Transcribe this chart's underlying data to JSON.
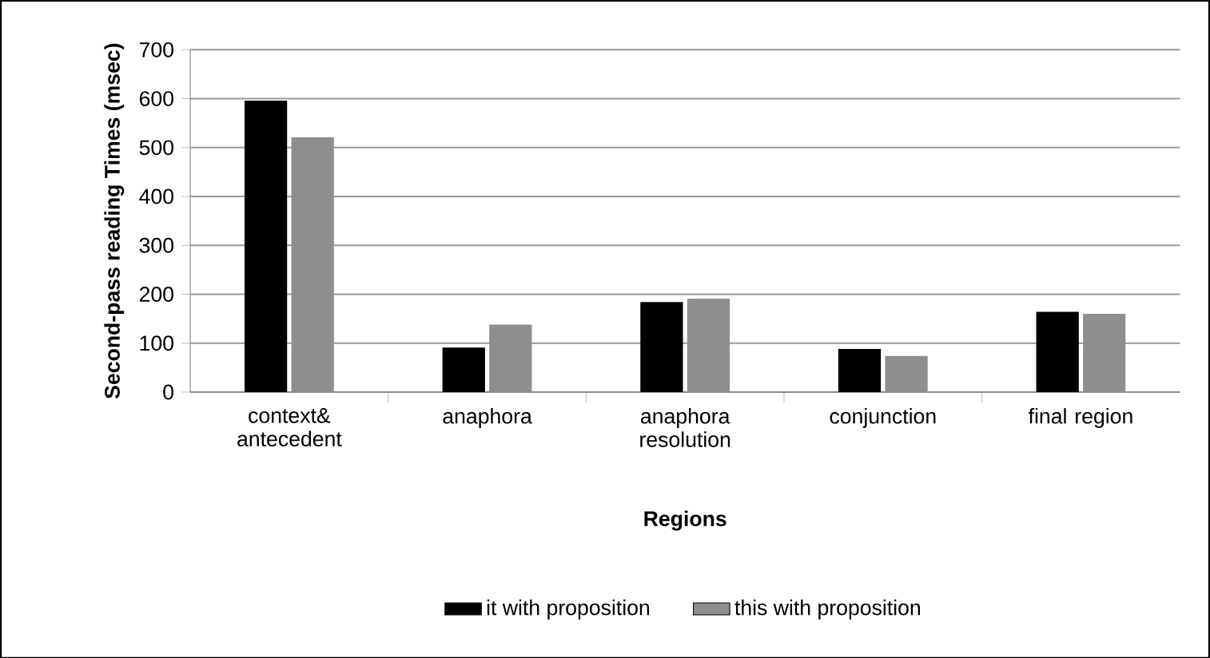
{
  "chart_data": {
    "type": "bar",
    "xlabel": "Regions",
    "ylabel": "Second-pass reading Times (msec)",
    "categories": [
      "context& antecedent",
      "anaphora",
      "anaphora resolution",
      "conjunction",
      "final region"
    ],
    "series": [
      {
        "name": "it with proposition",
        "color": "#000000",
        "values": [
          596,
          91,
          184,
          88,
          164
        ]
      },
      {
        "name": "this with proposition",
        "color": "#8e8e8e",
        "values": [
          521,
          138,
          191,
          74,
          160
        ]
      }
    ],
    "ylim": [
      0,
      700
    ],
    "yticks": [
      0,
      100,
      200,
      300,
      400,
      500,
      600,
      700
    ],
    "grid": "y",
    "legend": "bottom"
  }
}
